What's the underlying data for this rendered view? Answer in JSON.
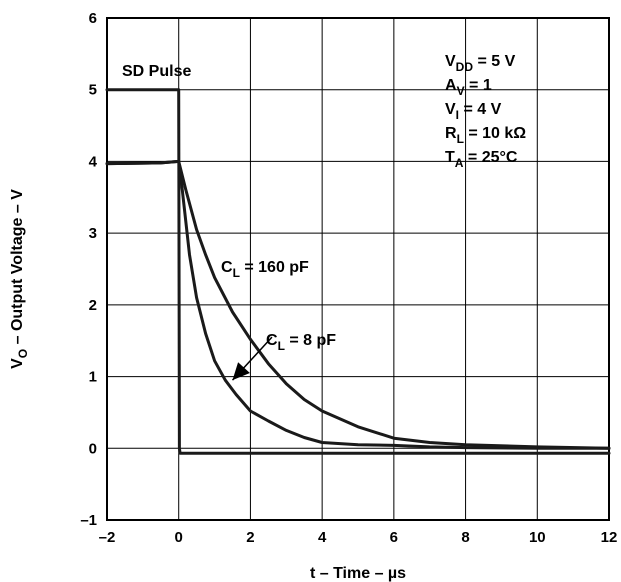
{
  "chart_data": {
    "type": "line",
    "xlabel": {
      "main": "t – Time – ",
      "unit": "µs"
    },
    "ylabel": {
      "var": "V",
      "sub": "O",
      "rest": " – Output Voltage – V"
    },
    "xlim": [
      -2,
      12
    ],
    "ylim": [
      -1,
      6
    ],
    "xticks": [
      -2,
      0,
      2,
      4,
      6,
      8,
      10,
      12
    ],
    "yticks": [
      -1,
      0,
      1,
      2,
      3,
      4,
      5,
      6
    ],
    "xtick_labels": [
      "–2",
      "0",
      "2",
      "4",
      "6",
      "8",
      "10",
      "12"
    ],
    "ytick_labels": [
      "–1",
      "0",
      "1",
      "2",
      "3",
      "4",
      "5",
      "6"
    ],
    "grid": true,
    "series": [
      {
        "name": "SD Pulse",
        "x": [
          -2,
          0,
          0.02,
          0.04,
          12
        ],
        "y": [
          5,
          5,
          0,
          -0.07,
          -0.07
        ]
      },
      {
        "name": "CL = 8 pF",
        "x": [
          -2,
          -0.5,
          0,
          0.1,
          0.3,
          0.5,
          0.75,
          1,
          1.3,
          1.6,
          2,
          2.5,
          3,
          3.5,
          4,
          5,
          6,
          7,
          8,
          10,
          12
        ],
        "y": [
          3.97,
          3.98,
          4.0,
          3.6,
          2.7,
          2.1,
          1.6,
          1.22,
          0.95,
          0.75,
          0.52,
          0.38,
          0.25,
          0.15,
          0.08,
          0.05,
          0.04,
          0.02,
          0.01,
          0.0,
          0.0
        ]
      },
      {
        "name": "CL = 160 pF",
        "x": [
          -2,
          -0.5,
          0,
          0.2,
          0.5,
          0.75,
          1,
          1.5,
          2,
          2.5,
          3,
          3.5,
          4,
          5,
          6,
          7,
          8,
          10,
          12
        ],
        "y": [
          3.97,
          3.98,
          4.0,
          3.6,
          3.05,
          2.7,
          2.38,
          1.9,
          1.52,
          1.18,
          0.9,
          0.68,
          0.52,
          0.3,
          0.14,
          0.08,
          0.05,
          0.02,
          0.0
        ]
      }
    ],
    "labels": {
      "sd_pulse": "SD Pulse",
      "cl_160": {
        "var": "C",
        "sub": "L",
        "rest": " = 160 pF"
      },
      "cl_8": {
        "var": "C",
        "sub": "L",
        "rest": " = 8 pF"
      }
    },
    "conditions": [
      {
        "var": "V",
        "sub": "DD",
        "rest": " = 5 V"
      },
      {
        "var": "A",
        "sub": "V",
        "rest": " = 1"
      },
      {
        "var": "V",
        "sub": "I",
        "rest": " = 4 V"
      },
      {
        "var": "R",
        "sub": "L",
        "rest": " = 10 kΩ"
      },
      {
        "var": "T",
        "sub": "A",
        "rest": " = 25°C"
      }
    ],
    "arrow": {
      "from": [
        2.6,
        1.55
      ],
      "to": [
        1.5,
        0.95
      ]
    }
  }
}
